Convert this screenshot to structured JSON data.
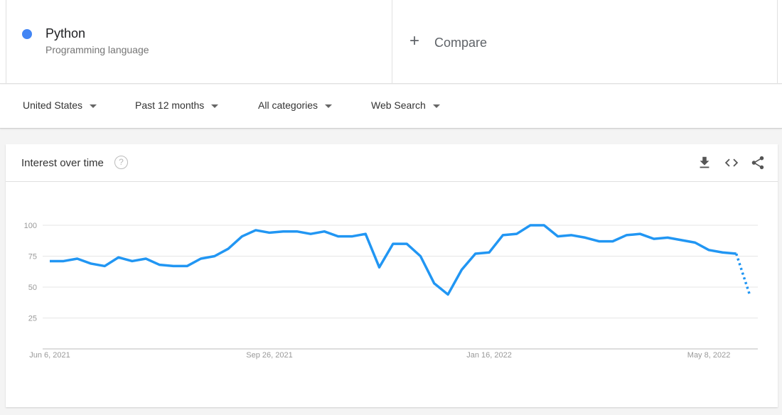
{
  "term": {
    "name": "Python",
    "subtitle": "Programming language",
    "color": "#4285f4"
  },
  "compare": {
    "label": "Compare",
    "icon": "plus-icon"
  },
  "filters": [
    {
      "label": "United States"
    },
    {
      "label": "Past 12 months"
    },
    {
      "label": "All categories"
    },
    {
      "label": "Web Search"
    }
  ],
  "card": {
    "title": "Interest over time",
    "help_icon": "help-icon",
    "actions": [
      "download-icon",
      "embed-icon",
      "share-icon"
    ]
  },
  "chart_data": {
    "type": "line",
    "title": "",
    "xlabel": "",
    "ylabel": "",
    "ylim": [
      0,
      100
    ],
    "yticks": [
      "25",
      "50",
      "75",
      "100"
    ],
    "xtick_labels": [
      "Jun 6, 2021",
      "Sep 26, 2021",
      "Jan 16, 2022",
      "May 8, 2022"
    ],
    "x_start": "Jun 6, 2021",
    "x_interval": "weekly",
    "grid": true,
    "line_color": "#2196f3",
    "series": [
      {
        "values": [
          71,
          71,
          73,
          69,
          67,
          74,
          71,
          73,
          68,
          67,
          67,
          73,
          75,
          81,
          91,
          96,
          94,
          95,
          95,
          93,
          95,
          91,
          91,
          93,
          66,
          85,
          85,
          75,
          53,
          44,
          64,
          77,
          78,
          92,
          93,
          100,
          100,
          91,
          92,
          90,
          87,
          87,
          92,
          93,
          89,
          90,
          88,
          86,
          80,
          78,
          77,
          43
        ],
        "last_point_partial": true
      }
    ]
  }
}
